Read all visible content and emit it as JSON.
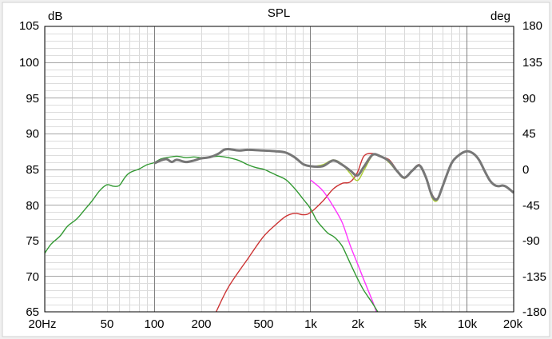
{
  "chart_data": {
    "type": "line",
    "title": "SPL",
    "y_unit_left": "dB",
    "y_unit_right": "deg",
    "x_scale": "log",
    "xlim": [
      20,
      20000
    ],
    "ylim": [
      65,
      105
    ],
    "y2lim": [
      -180,
      180
    ],
    "grid": true,
    "x_ticks": [
      {
        "v": 20,
        "label": "20Hz"
      },
      {
        "v": 50,
        "label": "50"
      },
      {
        "v": 100,
        "label": "100"
      },
      {
        "v": 200,
        "label": "200"
      },
      {
        "v": 500,
        "label": "500"
      },
      {
        "v": 1000,
        "label": "1k"
      },
      {
        "v": 2000,
        "label": "2k"
      },
      {
        "v": 5000,
        "label": "5k"
      },
      {
        "v": 10000,
        "label": "10k"
      },
      {
        "v": 20000,
        "label": "20k"
      }
    ],
    "y_ticks": [
      "105",
      "100",
      "95",
      "90",
      "85",
      "80",
      "75",
      "70",
      "65"
    ],
    "y2_ticks": [
      "180",
      "135",
      "90",
      "45",
      "0",
      "-45",
      "-90",
      "-135",
      "-180"
    ],
    "series": [
      {
        "color": "#cc3333",
        "points": [
          [
            250,
            65
          ],
          [
            300,
            68.5
          ],
          [
            400,
            72.5
          ],
          [
            500,
            75.5
          ],
          [
            600,
            77.2
          ],
          [
            700,
            78.4
          ],
          [
            800,
            78.8
          ],
          [
            900,
            78.6
          ],
          [
            1000,
            78.9
          ],
          [
            1200,
            80.5
          ],
          [
            1400,
            82.2
          ],
          [
            1600,
            83.0
          ],
          [
            1800,
            83.2
          ],
          [
            2000,
            84.5
          ],
          [
            2200,
            86.8
          ],
          [
            2500,
            87.2
          ],
          [
            2800,
            86.8
          ],
          [
            3200,
            86.3
          ],
          [
            3600,
            84.8
          ],
          [
            4000,
            83.7
          ],
          [
            4500,
            84.8
          ],
          [
            5000,
            85.6
          ],
          [
            5500,
            83.8
          ],
          [
            6000,
            81.5
          ],
          [
            6500,
            80.8
          ],
          [
            7000,
            82.5
          ],
          [
            8000,
            85.8
          ],
          [
            9000,
            87.0
          ],
          [
            10000,
            87.5
          ],
          [
            11000,
            87.2
          ],
          [
            12000,
            86.3
          ],
          [
            13000,
            84.8
          ],
          [
            14000,
            83.5
          ],
          [
            15000,
            82.8
          ],
          [
            16000,
            82.6
          ],
          [
            17000,
            82.7
          ],
          [
            18000,
            82.5
          ],
          [
            20000,
            81.7
          ]
        ]
      },
      {
        "color": "#aacc33",
        "points": [
          [
            1000,
            85.3
          ],
          [
            1200,
            85.6
          ],
          [
            1400,
            86.3
          ],
          [
            1600,
            85.7
          ],
          [
            1800,
            84.4
          ],
          [
            2000,
            83.4
          ],
          [
            2200,
            84.8
          ],
          [
            2500,
            86.9
          ],
          [
            2800,
            86.9
          ],
          [
            3200,
            85.9
          ],
          [
            3600,
            84.6
          ],
          [
            4000,
            83.7
          ],
          [
            4500,
            84.8
          ],
          [
            5000,
            85.5
          ],
          [
            5500,
            83.8
          ],
          [
            6000,
            81.0
          ],
          [
            6500,
            80.6
          ],
          [
            7000,
            82.5
          ],
          [
            8000,
            85.8
          ],
          [
            9000,
            87.0
          ],
          [
            10000,
            87.5
          ],
          [
            11000,
            87.2
          ],
          [
            12000,
            86.3
          ],
          [
            13000,
            84.8
          ],
          [
            14000,
            83.5
          ],
          [
            15000,
            82.8
          ],
          [
            16000,
            82.6
          ],
          [
            17000,
            82.7
          ],
          [
            18000,
            82.5
          ],
          [
            20000,
            81.7
          ]
        ]
      },
      {
        "color": "#ff33ff",
        "points": [
          [
            1000,
            83.5
          ],
          [
            1200,
            82.0
          ],
          [
            1400,
            79.8
          ],
          [
            1600,
            77.5
          ],
          [
            1800,
            74.3
          ],
          [
            2000,
            71.8
          ],
          [
            2200,
            69.5
          ],
          [
            2500,
            66.5
          ],
          [
            2650,
            65
          ]
        ]
      },
      {
        "color": "#339933",
        "points": [
          [
            20,
            73.2
          ],
          [
            22,
            74.5
          ],
          [
            25,
            75.6
          ],
          [
            28,
            77.0
          ],
          [
            32,
            78.0
          ],
          [
            36,
            79.3
          ],
          [
            40,
            80.5
          ],
          [
            45,
            82.0
          ],
          [
            50,
            82.8
          ],
          [
            55,
            82.6
          ],
          [
            60,
            82.7
          ],
          [
            65,
            83.8
          ],
          [
            70,
            84.5
          ],
          [
            80,
            85.0
          ],
          [
            90,
            85.6
          ],
          [
            100,
            85.9
          ],
          [
            110,
            86.4
          ],
          [
            120,
            86.6
          ],
          [
            140,
            86.8
          ],
          [
            160,
            86.6
          ],
          [
            180,
            86.7
          ],
          [
            200,
            86.6
          ],
          [
            230,
            86.7
          ],
          [
            260,
            86.8
          ],
          [
            300,
            86.6
          ],
          [
            350,
            86.2
          ],
          [
            400,
            85.6
          ],
          [
            450,
            85.2
          ],
          [
            500,
            85.0
          ],
          [
            550,
            84.6
          ],
          [
            600,
            84.2
          ],
          [
            700,
            83.5
          ],
          [
            800,
            82.2
          ],
          [
            900,
            80.8
          ],
          [
            1000,
            79.5
          ],
          [
            1100,
            77.8
          ],
          [
            1200,
            76.8
          ],
          [
            1300,
            76.0
          ],
          [
            1400,
            75.6
          ],
          [
            1500,
            75.0
          ],
          [
            1600,
            74.2
          ],
          [
            1700,
            73.0
          ],
          [
            1800,
            71.8
          ],
          [
            1900,
            70.7
          ],
          [
            2000,
            69.7
          ],
          [
            2200,
            68.0
          ],
          [
            2500,
            66.2
          ],
          [
            2700,
            65
          ]
        ]
      },
      {
        "color": "#777777",
        "points": [
          [
            100,
            85.8
          ],
          [
            110,
            86.2
          ],
          [
            120,
            86.4
          ],
          [
            130,
            86.0
          ],
          [
            140,
            86.3
          ],
          [
            160,
            86.0
          ],
          [
            180,
            86.2
          ],
          [
            200,
            86.5
          ],
          [
            230,
            86.7
          ],
          [
            260,
            87.2
          ],
          [
            280,
            87.7
          ],
          [
            300,
            87.8
          ],
          [
            350,
            87.6
          ],
          [
            400,
            87.7
          ],
          [
            500,
            87.6
          ],
          [
            600,
            87.5
          ],
          [
            700,
            87.3
          ],
          [
            800,
            86.6
          ],
          [
            900,
            85.7
          ],
          [
            1000,
            85.4
          ],
          [
            1200,
            85.4
          ],
          [
            1400,
            86.2
          ],
          [
            1600,
            85.6
          ],
          [
            1800,
            84.8
          ],
          [
            2000,
            84.1
          ],
          [
            2200,
            85.3
          ],
          [
            2500,
            87.0
          ],
          [
            2800,
            86.8
          ],
          [
            3200,
            86.1
          ],
          [
            3600,
            84.7
          ],
          [
            4000,
            83.8
          ],
          [
            4500,
            84.8
          ],
          [
            5000,
            85.5
          ],
          [
            5500,
            83.8
          ],
          [
            6000,
            81.3
          ],
          [
            6500,
            80.8
          ],
          [
            7000,
            82.5
          ],
          [
            8000,
            85.8
          ],
          [
            9000,
            87.0
          ],
          [
            10000,
            87.5
          ],
          [
            11000,
            87.2
          ],
          [
            12000,
            86.3
          ],
          [
            13000,
            84.8
          ],
          [
            14000,
            83.5
          ],
          [
            15000,
            82.8
          ],
          [
            16000,
            82.6
          ],
          [
            17000,
            82.7
          ],
          [
            18000,
            82.5
          ],
          [
            20000,
            81.7
          ]
        ]
      }
    ]
  }
}
